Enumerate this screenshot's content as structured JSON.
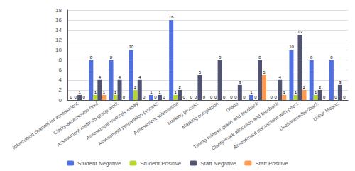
{
  "chart_data": {
    "type": "bar",
    "categories": [
      "Information channel for assessment",
      "Clarity-assessment brief",
      "Assessment methods-group work",
      "Assessment methods-essay",
      "Assessment preparation process",
      "Assessment submission",
      "Marking process",
      "Marking completion",
      "Grade",
      "Timing-release grade and feedback",
      "Clarity-mark allocation and feedback",
      "Assessment discussions with peers",
      "Usefulness-feedback",
      "Unfair Means"
    ],
    "series": [
      {
        "name": "Student Negative",
        "values": [
          0,
          8,
          8,
          10,
          1,
          16,
          0,
          0,
          0,
          1,
          0,
          10,
          8,
          8
        ]
      },
      {
        "name": "Student Positive",
        "values": [
          0,
          1,
          1,
          2,
          0,
          1,
          0,
          0,
          0,
          0,
          0,
          1,
          1,
          0
        ]
      },
      {
        "name": "Staff Negative",
        "values": [
          1,
          4,
          4,
          4,
          1,
          2,
          5,
          8,
          3,
          8,
          4,
          13,
          2,
          3
        ]
      },
      {
        "name": "Staff Positive",
        "values": [
          0,
          1,
          0,
          0,
          0,
          0,
          0,
          0,
          0,
          5,
          1,
          2,
          0,
          0
        ]
      }
    ],
    "ylim": [
      0,
      18
    ],
    "yticks": [
      0,
      2,
      4,
      6,
      8,
      10,
      12,
      14,
      16,
      18
    ],
    "grid": true,
    "data_labels": true,
    "legend": "bottom"
  }
}
